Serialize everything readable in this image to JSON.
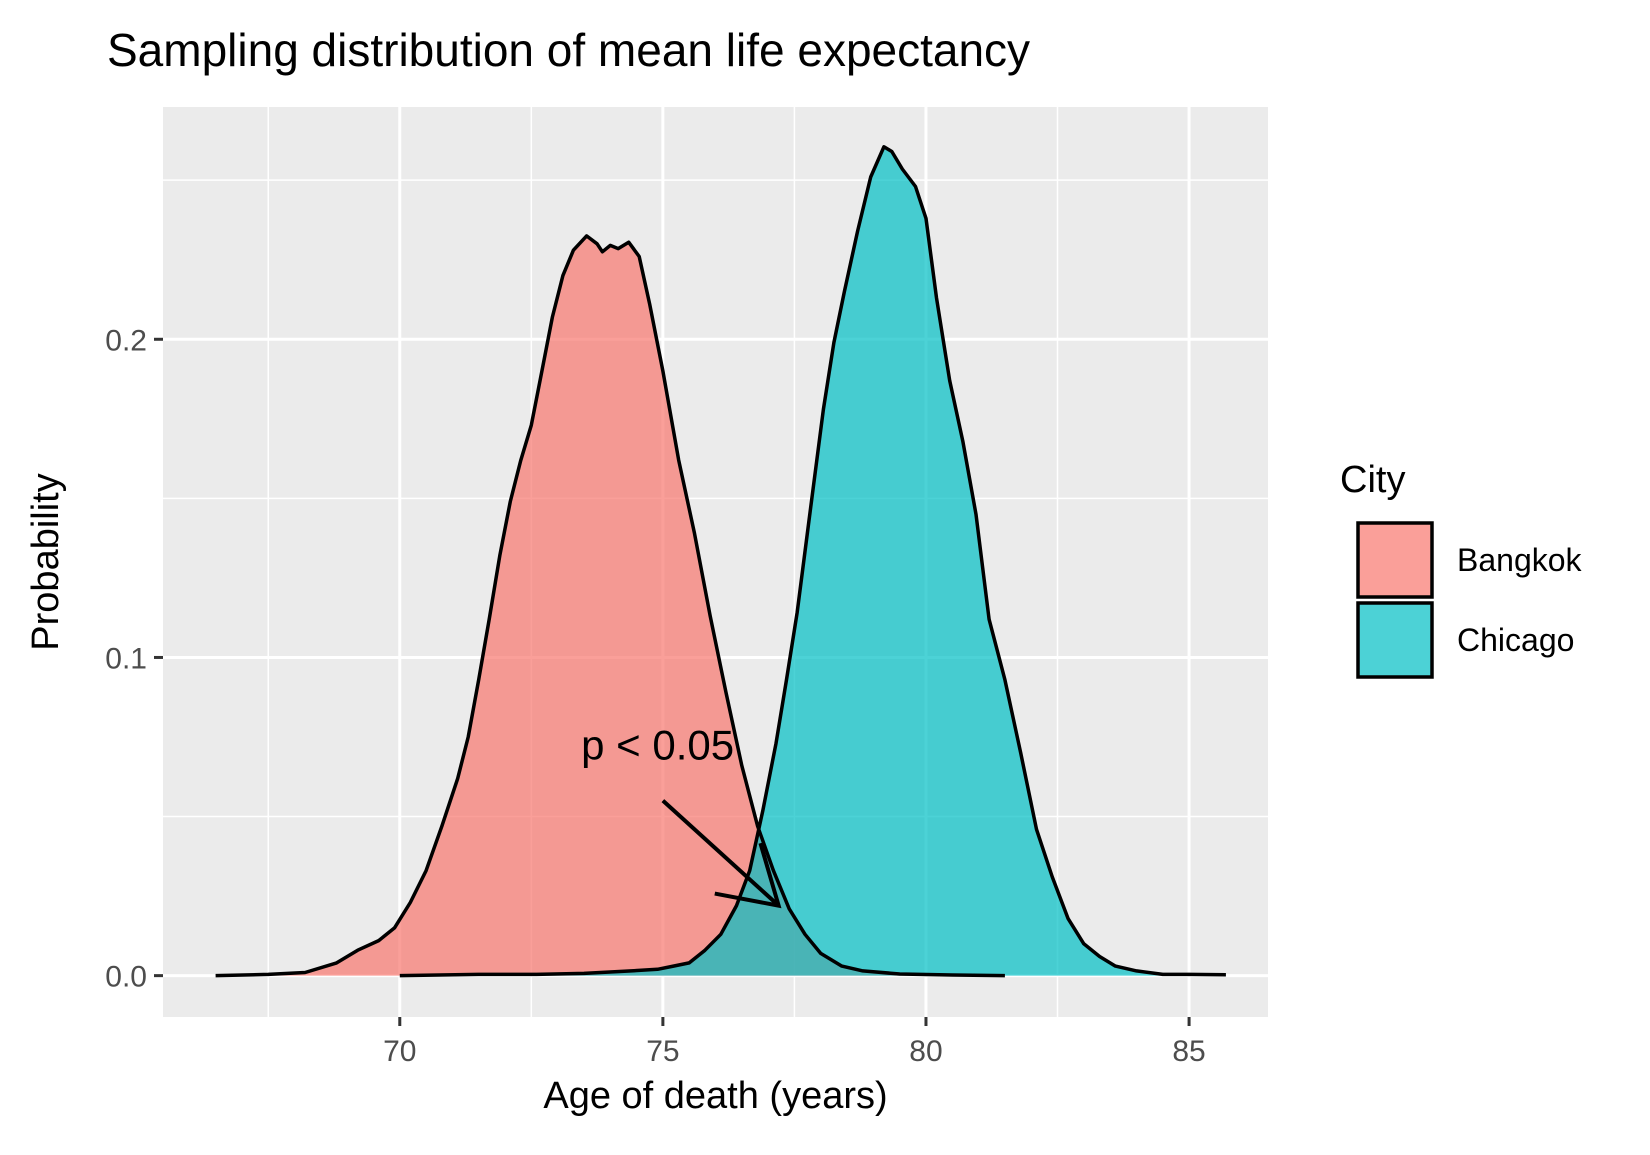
{
  "chart_data": {
    "type": "area",
    "subtype": "density",
    "title": "Sampling distribution of mean life expectancy",
    "xlabel": "Age of death (years)",
    "ylabel": "Probability",
    "xlim": [
      65.5,
      86.5
    ],
    "ylim": [
      -0.013,
      0.273
    ],
    "x_ticks": [
      70,
      75,
      80,
      85
    ],
    "x_tick_labels": [
      "70",
      "75",
      "80",
      "85"
    ],
    "x_minor_ticks": [
      67.5,
      72.5,
      77.5,
      82.5
    ],
    "y_ticks": [
      0.0,
      0.1,
      0.2
    ],
    "y_tick_labels": [
      "0.0",
      "0.1",
      "0.2"
    ],
    "y_minor_ticks": [
      0.05,
      0.15,
      0.25
    ],
    "grid": true,
    "legend": {
      "title": "City",
      "position": "right",
      "entries": [
        "Bangkok",
        "Chicago"
      ]
    },
    "series": [
      {
        "name": "Bangkok",
        "color": "#F8766D",
        "points": [
          [
            66.5,
            0.0
          ],
          [
            67.5,
            0.0004
          ],
          [
            68.2,
            0.001
          ],
          [
            68.8,
            0.004
          ],
          [
            69.2,
            0.008
          ],
          [
            69.6,
            0.011
          ],
          [
            69.9,
            0.015
          ],
          [
            70.2,
            0.023
          ],
          [
            70.5,
            0.033
          ],
          [
            70.8,
            0.047
          ],
          [
            71.1,
            0.062
          ],
          [
            71.3,
            0.075
          ],
          [
            71.5,
            0.093
          ],
          [
            71.7,
            0.112
          ],
          [
            71.9,
            0.132
          ],
          [
            72.1,
            0.149
          ],
          [
            72.3,
            0.162
          ],
          [
            72.5,
            0.173
          ],
          [
            72.7,
            0.19
          ],
          [
            72.9,
            0.207
          ],
          [
            73.1,
            0.22
          ],
          [
            73.3,
            0.228
          ],
          [
            73.55,
            0.2325
          ],
          [
            73.75,
            0.23
          ],
          [
            73.85,
            0.2275
          ],
          [
            74.0,
            0.2295
          ],
          [
            74.15,
            0.2285
          ],
          [
            74.35,
            0.2305
          ],
          [
            74.55,
            0.226
          ],
          [
            74.75,
            0.211
          ],
          [
            75.0,
            0.19
          ],
          [
            75.3,
            0.162
          ],
          [
            75.6,
            0.139
          ],
          [
            75.9,
            0.113
          ],
          [
            76.2,
            0.089
          ],
          [
            76.5,
            0.066
          ],
          [
            76.8,
            0.047
          ],
          [
            77.1,
            0.033
          ],
          [
            77.4,
            0.021
          ],
          [
            77.7,
            0.013
          ],
          [
            78.0,
            0.007
          ],
          [
            78.4,
            0.003
          ],
          [
            78.8,
            0.0015
          ],
          [
            79.5,
            0.0005
          ],
          [
            80.5,
            0.0002
          ],
          [
            81.5,
            0.0
          ]
        ]
      },
      {
        "name": "Chicago",
        "color": "#00BFC4",
        "points": [
          [
            70.0,
            0.0
          ],
          [
            71.5,
            0.0004
          ],
          [
            72.6,
            0.0004
          ],
          [
            73.5,
            0.0007
          ],
          [
            74.4,
            0.0015
          ],
          [
            74.9,
            0.002
          ],
          [
            75.2,
            0.003
          ],
          [
            75.5,
            0.004
          ],
          [
            75.8,
            0.008
          ],
          [
            76.1,
            0.013
          ],
          [
            76.4,
            0.022
          ],
          [
            76.65,
            0.033
          ],
          [
            76.9,
            0.052
          ],
          [
            77.15,
            0.073
          ],
          [
            77.35,
            0.093
          ],
          [
            77.55,
            0.114
          ],
          [
            77.8,
            0.146
          ],
          [
            78.05,
            0.178
          ],
          [
            78.25,
            0.199
          ],
          [
            78.45,
            0.215
          ],
          [
            78.7,
            0.234
          ],
          [
            78.95,
            0.251
          ],
          [
            79.2,
            0.2605
          ],
          [
            79.35,
            0.259
          ],
          [
            79.55,
            0.2535
          ],
          [
            79.8,
            0.248
          ],
          [
            80.0,
            0.238
          ],
          [
            80.2,
            0.213
          ],
          [
            80.45,
            0.187
          ],
          [
            80.7,
            0.168
          ],
          [
            80.95,
            0.145
          ],
          [
            81.2,
            0.112
          ],
          [
            81.5,
            0.093
          ],
          [
            81.8,
            0.07
          ],
          [
            82.1,
            0.046
          ],
          [
            82.4,
            0.031
          ],
          [
            82.7,
            0.018
          ],
          [
            83.0,
            0.01
          ],
          [
            83.3,
            0.006
          ],
          [
            83.6,
            0.003
          ],
          [
            84.0,
            0.0015
          ],
          [
            84.5,
            0.0004
          ],
          [
            85.0,
            0.0004
          ],
          [
            85.7,
            0.0003
          ]
        ]
      }
    ],
    "annotation": {
      "text": "p < 0.05",
      "text_x": 74.9,
      "text_y": 0.068,
      "arrow_from": [
        75.0,
        0.055
      ],
      "arrow_to": [
        77.2,
        0.022
      ]
    }
  }
}
